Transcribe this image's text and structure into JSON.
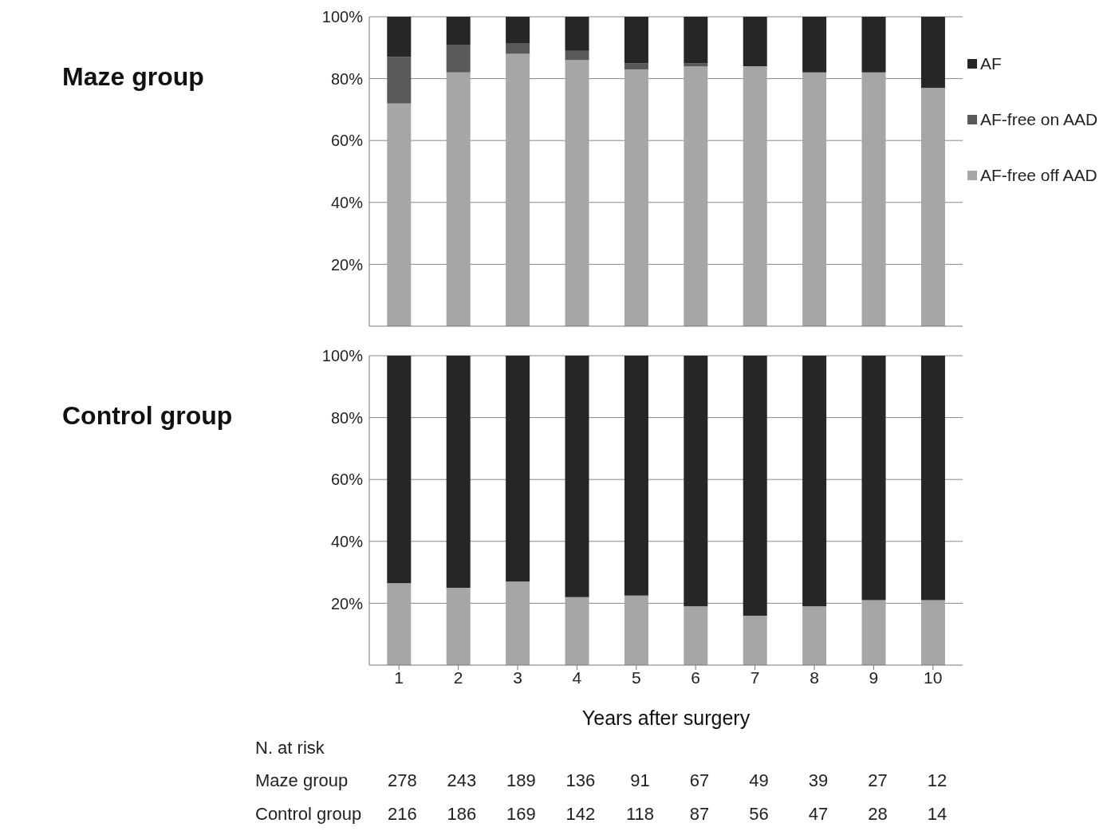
{
  "chart_data": [
    {
      "type": "bar",
      "title": "Maze group",
      "categories": [
        "1",
        "2",
        "3",
        "4",
        "5",
        "6",
        "7",
        "8",
        "9",
        "10"
      ],
      "stacked": true,
      "series": [
        {
          "name": "AF-free off AAD",
          "color": "#a6a6a6",
          "values": [
            72,
            82,
            88,
            86,
            83,
            84,
            84,
            82,
            82,
            77
          ]
        },
        {
          "name": "AF-free on AAD",
          "color": "#595959",
          "values": [
            15,
            9,
            3.5,
            3,
            2,
            1,
            0,
            0,
            0,
            0
          ]
        },
        {
          "name": "AF",
          "color": "#262626",
          "values": [
            13,
            9,
            8.5,
            11,
            15,
            15,
            16,
            18,
            18,
            23
          ]
        }
      ],
      "ylim": [
        0,
        100
      ],
      "yticks": [
        {
          "value": 20,
          "label": "20%"
        },
        {
          "value": 40,
          "label": "40%"
        },
        {
          "value": 60,
          "label": "60%"
        },
        {
          "value": 80,
          "label": "80%"
        },
        {
          "value": 100,
          "label": "100%"
        }
      ],
      "grid": "y",
      "legend": "right",
      "tick_labels": "y"
    },
    {
      "type": "bar",
      "title": "Control group",
      "xlabel": "Years after surgery",
      "categories": [
        "1",
        "2",
        "3",
        "4",
        "5",
        "6",
        "7",
        "8",
        "9",
        "10"
      ],
      "stacked": true,
      "series": [
        {
          "color": "#a6a6a6",
          "values": [
            26.5,
            25,
            27,
            22,
            22.5,
            19,
            16,
            19,
            21,
            21
          ]
        },
        {
          "color": "#262626",
          "values": [
            73.5,
            75,
            73,
            78,
            77.5,
            81,
            84,
            81,
            79,
            79
          ]
        }
      ],
      "ylim": [
        0,
        100
      ],
      "yticks": [
        {
          "value": 20,
          "label": "20%"
        },
        {
          "value": 40,
          "label": "40%"
        },
        {
          "value": 60,
          "label": "60%"
        },
        {
          "value": 80,
          "label": "80%"
        },
        {
          "value": 100,
          "label": "100%"
        }
      ],
      "grid": "y",
      "annotations": [
        "N. at risk",
        "Maze group 278 243 189 136 91 67 49 39 27 12",
        "Control group 216 186 169 142 118 87 56 47 28 14"
      ]
    }
  ]
}
